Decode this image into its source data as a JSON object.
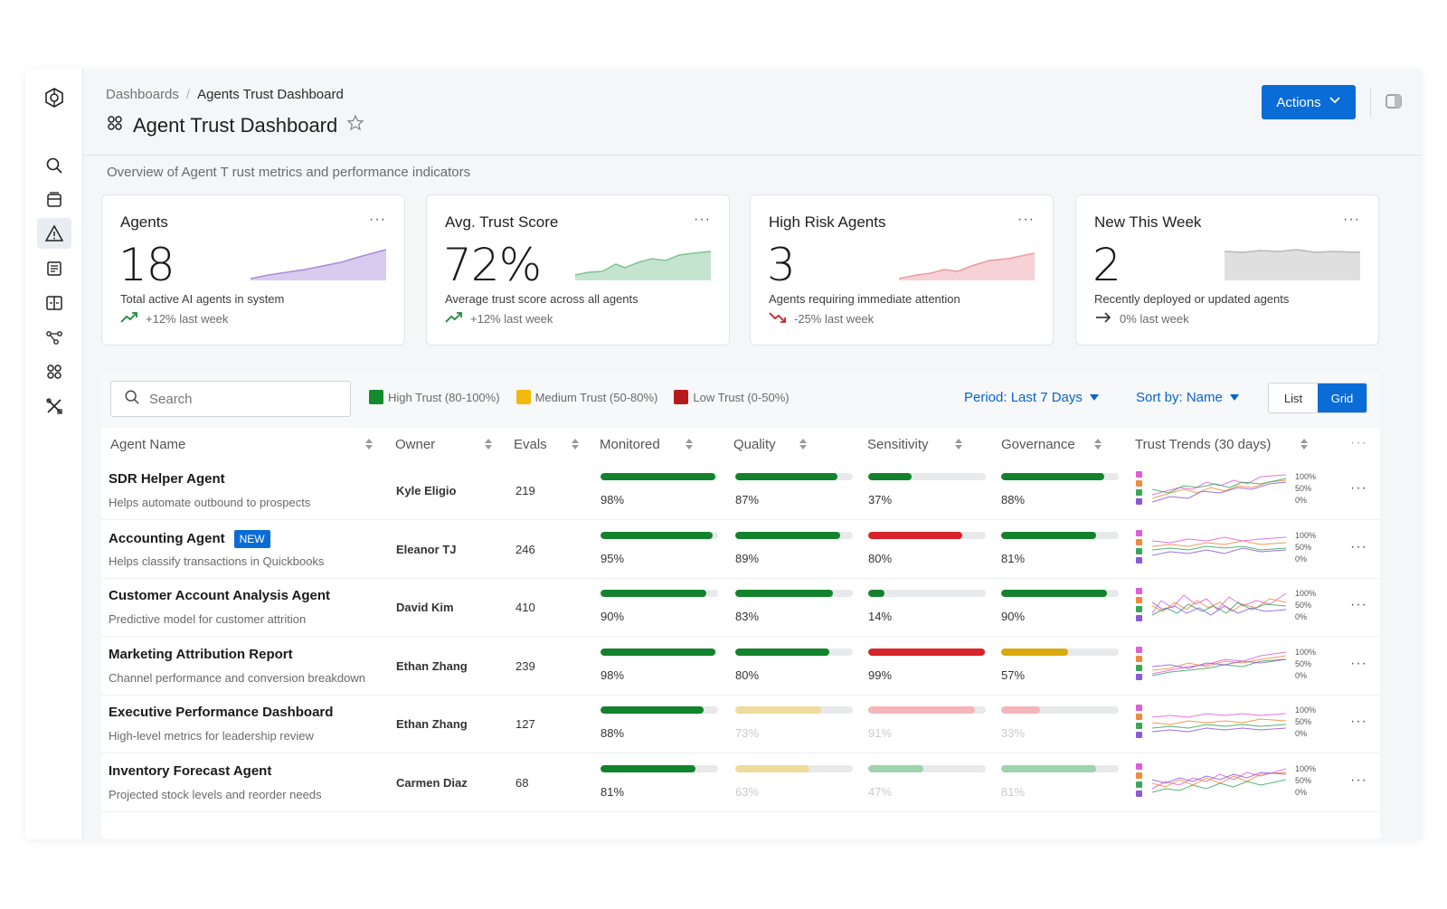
{
  "breadcrumb": {
    "root": "Dashboards",
    "separator": "/",
    "current": "Agents Trust Dashboard"
  },
  "page_title": "Agent Trust Dashboard",
  "actions_label": "Actions",
  "subtitle": "Overview of Agent T rust metrics and performance indicators",
  "kpis": [
    {
      "title": "Agents",
      "value": "18",
      "desc": "Total active AI agents in system",
      "trend": "+12% last week",
      "trend_dir": "up",
      "color": "#a78bda"
    },
    {
      "title": "Avg. Trust Score",
      "value": "72%",
      "desc": "Average trust score across all agents",
      "trend": "+12% last week",
      "trend_dir": "up",
      "color": "#7fc394"
    },
    {
      "title": "High Risk Agents",
      "value": "3",
      "desc": "Agents requiring immediate attention",
      "trend": "-25% last week",
      "trend_dir": "down",
      "color": "#ec9aa1"
    },
    {
      "title": "New This Week",
      "value": "2",
      "desc": "Recently deployed or updated agents",
      "trend": "0% last week",
      "trend_dir": "flat",
      "color": "#b8b8b8"
    }
  ],
  "kpi_more": "···",
  "search": {
    "placeholder": "Search"
  },
  "legend": [
    {
      "label": "High Trust (80-100%)",
      "color": "#138a2c"
    },
    {
      "label": "Medium Trust (50-80%)",
      "color": "#f2b90f"
    },
    {
      "label": "Low Trust (0-50%)",
      "color": "#b51a1a"
    }
  ],
  "period_label": "Period: Last 7 Days",
  "sort_label": "Sort by: Name",
  "view": {
    "list": "List",
    "grid": "Grid"
  },
  "columns": [
    "Agent Name",
    "Owner",
    "Evals",
    "Monitored",
    "Quality",
    "Sensitivity",
    "Governance",
    "Trust Trends (30 days)"
  ],
  "trend_pct_labels": [
    "100%",
    "50%",
    "0%"
  ],
  "rows": [
    {
      "name": "SDR Helper Agent",
      "badge": "",
      "desc": "Helps automate outbound to prospects",
      "owner": "Kyle Eligio",
      "evals": "219",
      "metrics": [
        {
          "v": 98,
          "c": "#13822c"
        },
        {
          "v": 87,
          "c": "#13822c"
        },
        {
          "v": 37,
          "c": "#13822c"
        },
        {
          "v": 88,
          "c": "#13822c"
        }
      ],
      "faded": [
        false,
        false,
        false,
        false
      ]
    },
    {
      "name": "Accounting Agent",
      "badge": "NEW",
      "desc": "Helps classify transactions in Quickbooks",
      "owner": "Eleanor TJ",
      "evals": "246",
      "metrics": [
        {
          "v": 95,
          "c": "#13822c"
        },
        {
          "v": 89,
          "c": "#13822c"
        },
        {
          "v": 80,
          "c": "#d8232a"
        },
        {
          "v": 81,
          "c": "#13822c"
        }
      ],
      "faded": [
        false,
        false,
        false,
        false
      ]
    },
    {
      "name": "Customer Account Analysis Agent",
      "badge": "",
      "desc": "Predictive model for customer attrition",
      "owner": "David Kim",
      "evals": "410",
      "metrics": [
        {
          "v": 90,
          "c": "#13822c"
        },
        {
          "v": 83,
          "c": "#13822c"
        },
        {
          "v": 14,
          "c": "#13822c"
        },
        {
          "v": 90,
          "c": "#13822c"
        }
      ],
      "faded": [
        false,
        false,
        false,
        false
      ]
    },
    {
      "name": "Marketing Attribution Report",
      "badge": "",
      "desc": "Channel performance and conversion breakdown",
      "owner": "Ethan Zhang",
      "evals": "239",
      "metrics": [
        {
          "v": 98,
          "c": "#13822c"
        },
        {
          "v": 80,
          "c": "#13822c"
        },
        {
          "v": 99,
          "c": "#d8232a"
        },
        {
          "v": 57,
          "c": "#d9a90d"
        }
      ],
      "faded": [
        false,
        false,
        false,
        false
      ]
    },
    {
      "name": "Executive Performance Dashboard",
      "badge": "",
      "desc": "High-level metrics for leadership review",
      "owner": "Ethan Zhang",
      "evals": "127",
      "metrics": [
        {
          "v": 88,
          "c": "#13822c"
        },
        {
          "v": 73,
          "c": "#f0dc9a"
        },
        {
          "v": 91,
          "c": "#f4b6b8"
        },
        {
          "v": 33,
          "c": "#f4b6b8"
        }
      ],
      "faded": [
        false,
        true,
        true,
        true
      ]
    },
    {
      "name": "Inventory Forecast Agent",
      "badge": "",
      "desc": "Projected stock levels and reorder needs",
      "owner": "Carmen Diaz",
      "evals": "68",
      "metrics": [
        {
          "v": 81,
          "c": "#13822c"
        },
        {
          "v": 63,
          "c": "#f0dc9a"
        },
        {
          "v": 47,
          "c": "#9fd3ad"
        },
        {
          "v": 81,
          "c": "#9fd3ad"
        }
      ],
      "faded": [
        false,
        true,
        true,
        true
      ]
    }
  ],
  "row_more": "···",
  "trend_series_colors": [
    "#e05dd8",
    "#f08a3c",
    "#3aa65a",
    "#8a5ad8"
  ]
}
